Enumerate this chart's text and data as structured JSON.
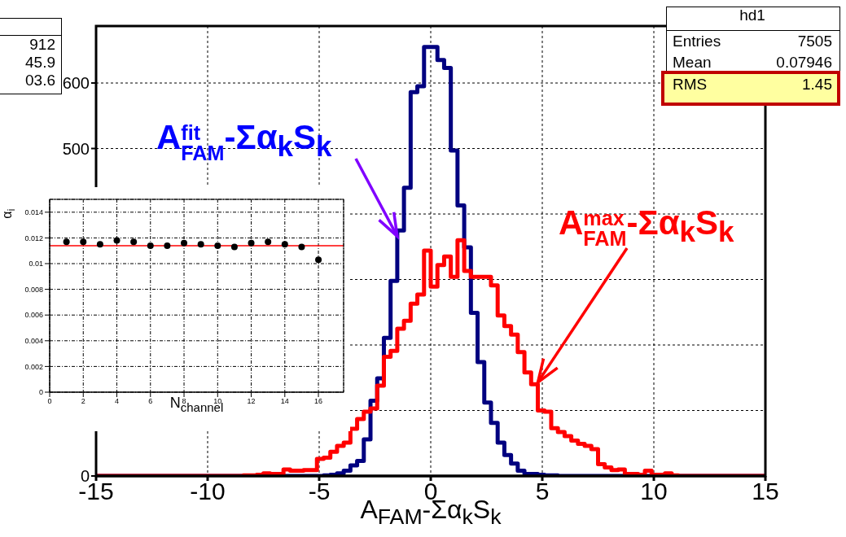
{
  "chart_data": [
    {
      "type": "histogram",
      "xlabel": "A$_{FAM}$-Σα$_{k}$S$_{k}$",
      "xlim": [
        -15,
        15
      ],
      "xticks": [
        -15,
        -10,
        -5,
        0,
        5,
        10,
        15
      ],
      "ylim": [
        0,
        687
      ],
      "yticks": [
        0,
        {
          "value": 100,
          "label": null
        },
        {
          "value": 200,
          "label": null
        },
        {
          "value": 300,
          "label": null
        },
        {
          "value": 400,
          "label": null
        },
        500,
        600
      ],
      "grid": true,
      "bins": [
        -15,
        -14.7,
        -14.4,
        -14.1,
        -13.8,
        -13.5,
        -13.2,
        -12.9,
        -12.6,
        -12.3,
        -12,
        -11.7,
        -11.4,
        -11.1,
        -10.8,
        -10.5,
        -10.2,
        -9.9,
        -9.6,
        -9.3,
        -9,
        -8.7,
        -8.4,
        -8.1,
        -7.8,
        -7.5,
        -7.2,
        -6.9,
        -6.6,
        -6.3,
        -6,
        -5.7,
        -5.4,
        -5.1,
        -4.8,
        -4.5,
        -4.2,
        -3.9,
        -3.6,
        -3.3,
        -3,
        -2.7,
        -2.4,
        -2.1,
        -1.8,
        -1.5,
        -1.2,
        -0.9,
        -0.6,
        -0.3,
        0,
        0.3,
        0.6,
        0.9,
        1.2,
        1.5,
        1.8,
        2.1,
        2.4,
        2.7,
        3,
        3.3,
        3.6,
        3.9,
        4.2,
        4.5,
        4.8,
        5.1,
        5.4,
        5.7,
        6,
        6.3,
        6.6,
        6.9,
        7.2,
        7.5,
        7.8,
        8.1,
        8.4,
        8.7,
        9,
        9.3,
        9.6,
        9.9,
        10.2,
        10.5,
        10.8,
        11.1,
        11.4,
        11.7,
        12,
        12.3,
        12.6,
        12.9,
        13.2,
        13.5,
        13.8,
        14.1,
        14.4,
        14.7,
        15
      ],
      "series": [
        {
          "color": "#000080",
          "values": [
            0,
            0,
            0,
            0,
            0,
            0,
            0,
            0,
            0,
            0,
            0,
            0,
            0,
            0,
            0,
            0,
            0,
            0,
            0,
            0,
            0,
            0,
            0,
            0,
            0,
            0,
            0,
            0,
            0,
            0,
            0,
            0,
            0,
            0,
            1,
            2,
            4,
            8,
            16,
            23,
            56,
            115,
            149,
            211,
            298,
            375,
            440,
            586,
            595,
            655,
            655,
            635,
            623,
            497,
            413,
            349,
            249,
            174,
            112,
            81,
            51,
            32,
            19,
            8,
            3,
            3,
            2,
            1,
            1,
            0,
            0,
            0,
            0,
            0,
            0,
            0,
            0,
            0,
            0,
            0,
            0,
            0,
            0,
            0,
            0,
            0,
            0,
            0,
            0,
            0,
            0,
            0,
            0,
            0,
            0,
            0,
            0,
            0,
            0,
            0
          ]
        },
        {
          "color": "#ff0000",
          "values": [
            0,
            0,
            0,
            0,
            0,
            0,
            0,
            0,
            0,
            0,
            0,
            0,
            0,
            0,
            0,
            0,
            0,
            0,
            0,
            0,
            0,
            0,
            1,
            1,
            2,
            4,
            3,
            3,
            10,
            8,
            8,
            9,
            9,
            26,
            28,
            37,
            46,
            51,
            72,
            87,
            98,
            103,
            138,
            182,
            191,
            225,
            237,
            263,
            277,
            344,
            289,
            322,
            335,
            304,
            360,
            313,
            304,
            304,
            304,
            291,
            245,
            229,
            216,
            189,
            158,
            140,
            100,
            98,
            73,
            67,
            61,
            54,
            49,
            46,
            41,
            18,
            13,
            9,
            10,
            3,
            3,
            2,
            8,
            2,
            2,
            4,
            1,
            0,
            0,
            0,
            0,
            0,
            0,
            0,
            0,
            0,
            0,
            0,
            0,
            0
          ]
        }
      ],
      "annotations": [
        {
          "text": "A$^{fit}$$_{FAM}$-Σα$_{k}$S$_{k}$",
          "x": -1.5,
          "y": 366
        },
        {
          "text": "A$^{max}$$_{FAM}$-Σα$_{k}$S$_{k}$",
          "x": 4.8,
          "y": 143
        },
        "hd1",
        "Entries",
        "7505",
        "Mean",
        "0.07946",
        "RMS",
        "1.45",
        "912",
        "45.9",
        "03.6"
      ]
    },
    {
      "type": "scatter",
      "xlabel": "N$_{channel}$",
      "ylabel": "α$_{i}$",
      "xlim": [
        0,
        17.5
      ],
      "xticks": [
        0,
        2,
        4,
        6,
        8,
        10,
        12,
        14,
        16
      ],
      "ylim": [
        0,
        0.015
      ],
      "yticks": [
        0,
        0.002,
        0.004,
        0.006,
        0.008,
        0.01,
        0.012,
        0.014
      ],
      "grid": true,
      "marker": "circle",
      "x": [
        1,
        2,
        3,
        4,
        5,
        6,
        7,
        8,
        9,
        10,
        11,
        12,
        13,
        14,
        15,
        16
      ],
      "series": [
        {
          "color": "#000000",
          "values": [
            0.0117,
            0.0117,
            0.0115,
            0.0118,
            0.0117,
            0.0114,
            0.0114,
            0.0116,
            0.0115,
            0.0114,
            0.0113,
            0.0116,
            0.0117,
            0.0115,
            0.0113,
            0.0103
          ]
        }
      ],
      "ref_lines": [
        {
          "axis": "y",
          "value": 0.0114,
          "color": "#ff0000"
        }
      ]
    }
  ]
}
